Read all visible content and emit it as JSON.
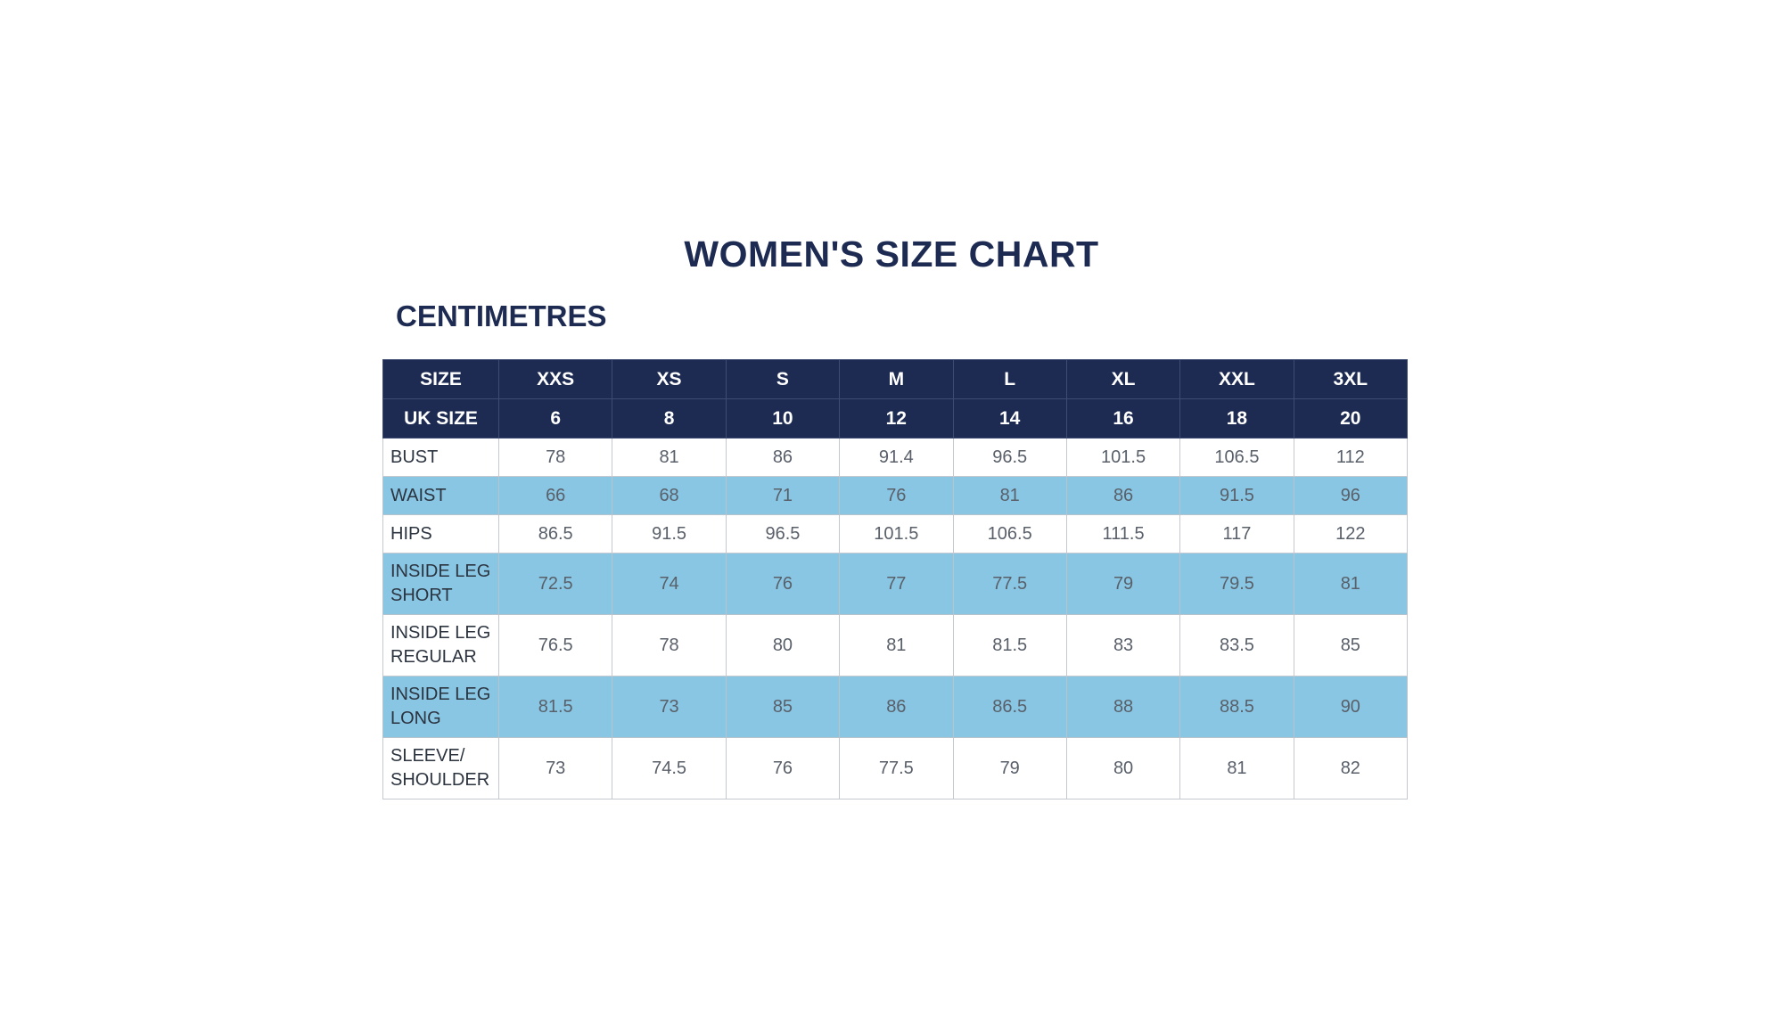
{
  "title": "WOMEN'S SIZE CHART",
  "subtitle": "CENTIMETRES",
  "table": {
    "header_rows": [
      {
        "label": "SIZE",
        "cells": [
          "XXS",
          "XS",
          "S",
          "M",
          "L",
          "XL",
          "XXL",
          "3XL"
        ]
      },
      {
        "label": "UK SIZE",
        "cells": [
          "6",
          "8",
          "10",
          "12",
          "14",
          "16",
          "18",
          "20"
        ]
      }
    ],
    "rows": [
      {
        "label_line1": "BUST",
        "label_line2": "",
        "cells": [
          "78",
          "81",
          "86",
          "91.4",
          "96.5",
          "101.5",
          "106.5",
          "112"
        ]
      },
      {
        "label_line1": "WAIST",
        "label_line2": "",
        "cells": [
          "66",
          "68",
          "71",
          "76",
          "81",
          "86",
          "91.5",
          "96"
        ]
      },
      {
        "label_line1": "HIPS",
        "label_line2": "",
        "cells": [
          "86.5",
          "91.5",
          "96.5",
          "101.5",
          "106.5",
          "111.5",
          "117",
          "122"
        ]
      },
      {
        "label_line1": "INSIDE LEG",
        "label_line2": "SHORT",
        "cells": [
          "72.5",
          "74",
          "76",
          "77",
          "77.5",
          "79",
          "79.5",
          "81"
        ]
      },
      {
        "label_line1": "INSIDE LEG",
        "label_line2": "REGULAR",
        "cells": [
          "76.5",
          "78",
          "80",
          "81",
          "81.5",
          "83",
          "83.5",
          "85"
        ]
      },
      {
        "label_line1": "INSIDE LEG",
        "label_line2": "LONG",
        "cells": [
          "81.5",
          "73",
          "85",
          "86",
          "86.5",
          "88",
          "88.5",
          "90"
        ]
      },
      {
        "label_line1": "SLEEVE/",
        "label_line2": "SHOULDER",
        "cells": [
          "73",
          "74.5",
          "76",
          "77.5",
          "79",
          "80",
          "81",
          "82"
        ]
      }
    ]
  },
  "colors": {
    "header_navy": "#1d2a52",
    "row_blue": "#88c6e3"
  }
}
